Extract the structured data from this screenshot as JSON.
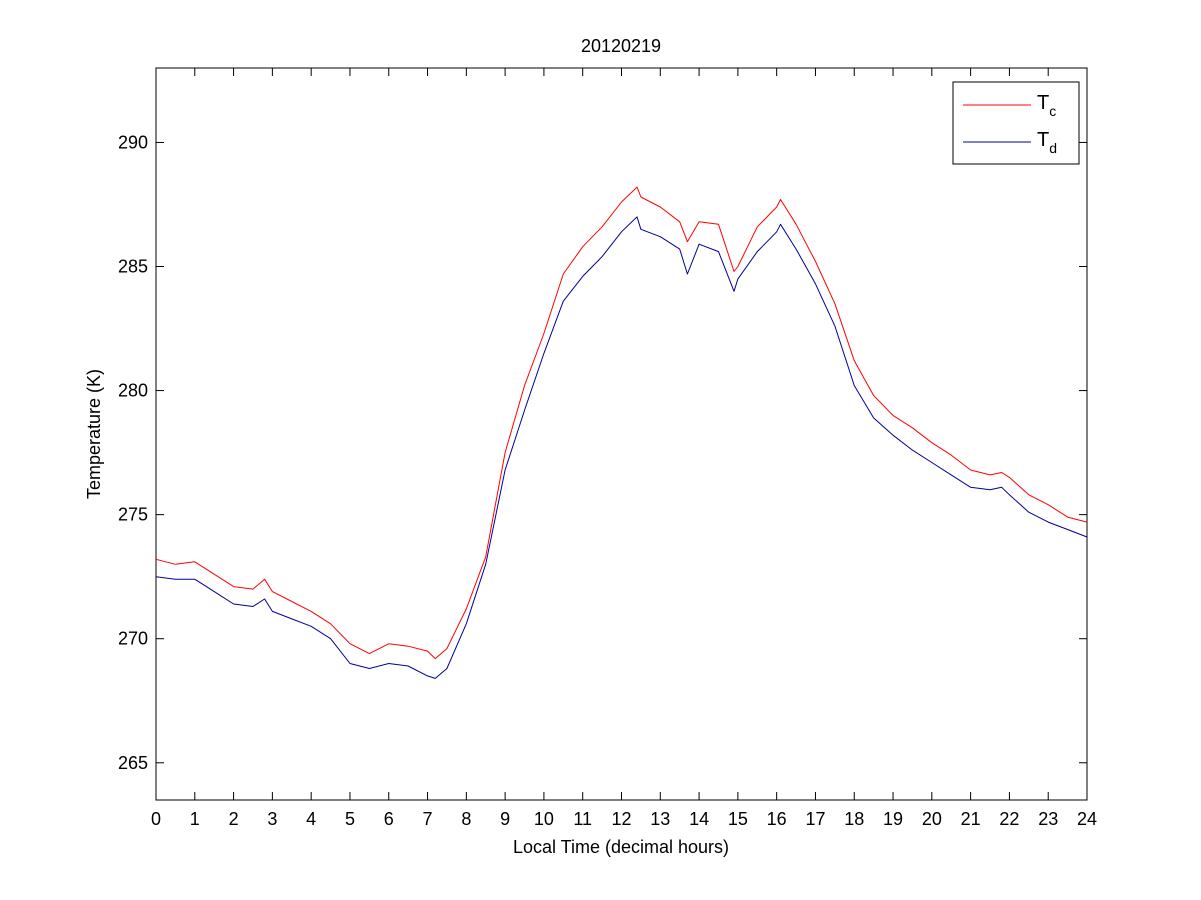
{
  "chart_data": {
    "type": "line",
    "title": "20120219",
    "xlabel": "Local Time (decimal hours)",
    "ylabel": "Temperature (K)",
    "xlim": [
      0,
      24
    ],
    "ylim": [
      263.5,
      293
    ],
    "xticks": [
      0,
      1,
      2,
      3,
      4,
      5,
      6,
      7,
      8,
      9,
      10,
      11,
      12,
      13,
      14,
      15,
      16,
      17,
      18,
      19,
      20,
      21,
      22,
      23,
      24
    ],
    "yticks": [
      265,
      270,
      275,
      280,
      285,
      290
    ],
    "grid": false,
    "legend_position": "top-right",
    "x": [
      0,
      0.5,
      1,
      1.5,
      2,
      2.5,
      2.8,
      3,
      3.5,
      4,
      4.5,
      5,
      5.5,
      6,
      6.5,
      7,
      7.2,
      7.5,
      8,
      8.5,
      9,
      9.5,
      10,
      10.5,
      11,
      11.5,
      12,
      12.4,
      12.5,
      13,
      13.5,
      13.7,
      14,
      14.5,
      14.9,
      15,
      15.5,
      16,
      16.1,
      16.5,
      17,
      17.5,
      18,
      18.5,
      19,
      19.5,
      20,
      20.5,
      21,
      21.5,
      21.8,
      22,
      22.5,
      23,
      23.5,
      24
    ],
    "series": [
      {
        "name": "T",
        "subscript": "c",
        "color": "#ff0000",
        "values": [
          273.2,
          273.0,
          273.1,
          272.6,
          272.1,
          272.0,
          272.4,
          271.9,
          271.5,
          271.1,
          270.6,
          269.8,
          269.4,
          269.8,
          269.7,
          269.5,
          269.2,
          269.6,
          271.2,
          273.3,
          277.5,
          280.2,
          282.3,
          284.7,
          285.8,
          286.6,
          287.6,
          288.2,
          287.8,
          287.4,
          286.8,
          286.0,
          286.8,
          286.7,
          284.8,
          285.0,
          286.6,
          287.4,
          287.7,
          286.7,
          285.2,
          283.5,
          281.2,
          279.8,
          279.0,
          278.5,
          277.9,
          277.4,
          276.8,
          276.6,
          276.7,
          276.5,
          275.8,
          275.4,
          274.9,
          274.7
        ]
      },
      {
        "name": "T",
        "subscript": "d",
        "color": "#000099",
        "values": [
          272.5,
          272.4,
          272.4,
          271.9,
          271.4,
          271.3,
          271.6,
          271.1,
          270.8,
          270.5,
          270.0,
          269.0,
          268.8,
          269.0,
          268.9,
          268.5,
          268.4,
          268.8,
          270.6,
          273.0,
          276.8,
          279.2,
          281.5,
          283.6,
          284.6,
          285.4,
          286.4,
          287.0,
          286.5,
          286.2,
          285.7,
          284.7,
          285.9,
          285.6,
          284.0,
          284.5,
          285.6,
          286.4,
          286.7,
          285.7,
          284.3,
          282.6,
          280.2,
          278.9,
          278.2,
          277.6,
          277.1,
          276.6,
          276.1,
          276.0,
          276.1,
          275.8,
          275.1,
          274.7,
          274.4,
          274.1
        ]
      }
    ]
  }
}
